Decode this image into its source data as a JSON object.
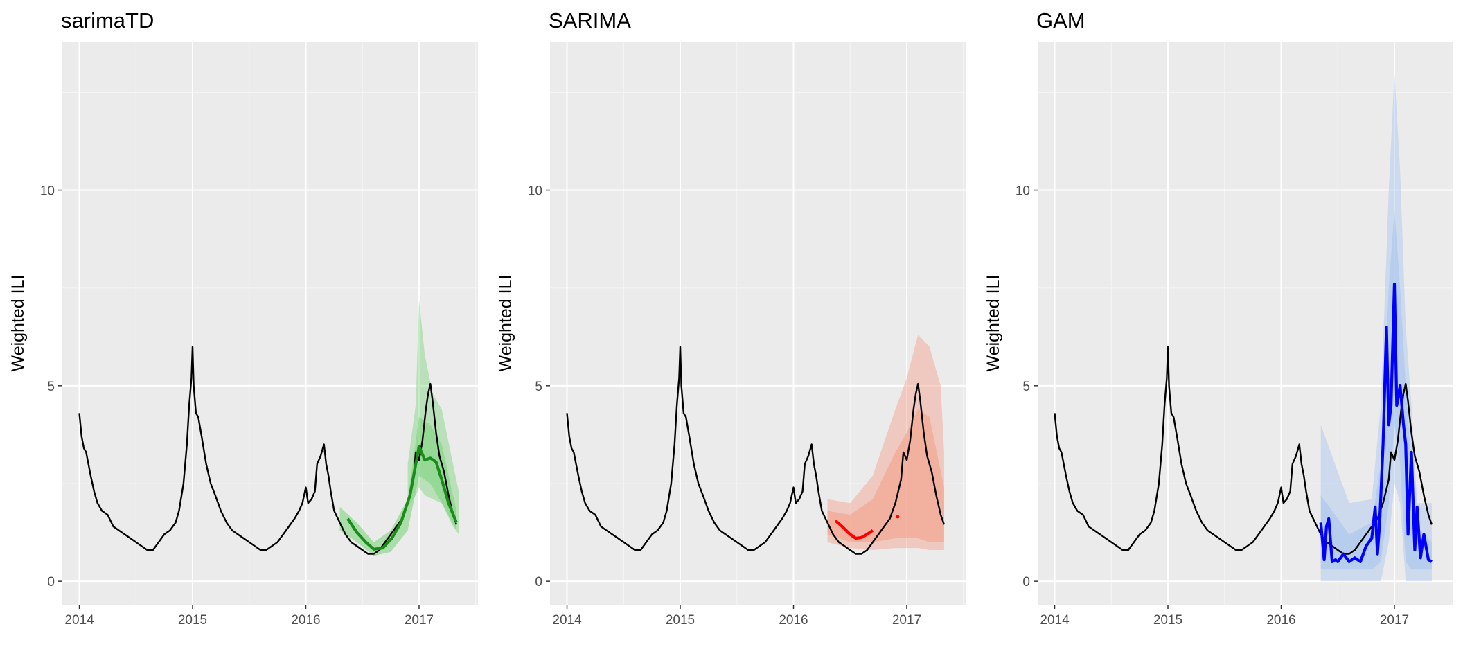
{
  "chart_data": [
    {
      "type": "line",
      "title": "sarimaTD",
      "xlabel": "",
      "ylabel": "Weighted ILI",
      "xlim": [
        2013.85,
        2017.52
      ],
      "ylim": [
        -0.6,
        13.8
      ],
      "x_ticks": [
        2014,
        2015,
        2016,
        2017
      ],
      "x_tick_labels": [
        "2014",
        "2015",
        "2016",
        "2017"
      ],
      "y_ticks": [
        0,
        5,
        10
      ],
      "y_tick_labels": [
        "0",
        "5",
        "10"
      ],
      "grid": true,
      "observed_color": "#000000",
      "forecast_color": "#1a8c1a",
      "band_color": "#7fd37f",
      "forecast": {
        "x": [
          2016.37,
          2016.45,
          2016.53,
          2016.6,
          2016.68,
          2016.76,
          2016.84,
          2016.92,
          2017.0,
          2017.05,
          2017.1,
          2017.15,
          2017.2,
          2017.26,
          2017.33
        ],
        "y": [
          1.6,
          1.25,
          1.0,
          0.82,
          0.85,
          1.1,
          1.5,
          2.2,
          3.45,
          3.1,
          3.15,
          3.05,
          2.6,
          2.0,
          1.5
        ]
      },
      "bands": [
        {
          "x": [
            2016.9,
            2016.97,
            2017.0,
            2017.05,
            2017.12,
            2017.2,
            2017.3,
            2017.35
          ],
          "lower": [
            1.9,
            2.2,
            2.4,
            2.2,
            2.1,
            2.0,
            1.4,
            1.2
          ],
          "upper": [
            3.0,
            4.5,
            7.2,
            5.8,
            4.8,
            4.4,
            3.0,
            2.3
          ]
        },
        {
          "x": [
            2016.3,
            2016.45,
            2016.6,
            2016.75,
            2016.9,
            2017.0,
            2017.1,
            2017.2,
            2017.33
          ],
          "lower": [
            1.3,
            1.0,
            0.65,
            0.75,
            1.3,
            2.7,
            2.5,
            2.0,
            1.3
          ],
          "upper": [
            1.9,
            1.5,
            1.0,
            1.3,
            2.1,
            4.2,
            4.0,
            3.5,
            1.8
          ]
        }
      ]
    },
    {
      "type": "line",
      "title": "SARIMA",
      "xlabel": "",
      "ylabel": "Weighted ILI",
      "xlim": [
        2013.85,
        2017.52
      ],
      "ylim": [
        -0.6,
        13.8
      ],
      "x_ticks": [
        2014,
        2015,
        2016,
        2017
      ],
      "x_tick_labels": [
        "2014",
        "2015",
        "2016",
        "2017"
      ],
      "y_ticks": [
        0,
        5,
        10
      ],
      "y_tick_labels": [
        "0",
        "5",
        "10"
      ],
      "grid": true,
      "observed_color": "#000000",
      "forecast_color": "#ff0000",
      "band_color": "#f4a08a",
      "forecast": {
        "x": [
          2016.37,
          2016.43,
          2016.5,
          2016.55,
          2016.6,
          2016.65,
          2016.7
        ],
        "y": [
          1.55,
          1.4,
          1.2,
          1.1,
          1.12,
          1.2,
          1.3
        ]
      },
      "forecast_point": {
        "x": 2016.92,
        "y": 1.65
      },
      "bands": [
        {
          "x": [
            2016.3,
            2016.5,
            2016.7,
            2016.9,
            2017.0,
            2017.1,
            2017.2,
            2017.3,
            2017.33
          ],
          "lower": [
            1.0,
            0.85,
            0.8,
            0.85,
            0.85,
            0.85,
            0.8,
            0.8,
            0.8
          ],
          "upper": [
            2.1,
            2.0,
            2.7,
            4.4,
            5.2,
            6.3,
            6.0,
            5.0,
            3.3
          ]
        },
        {
          "x": [
            2016.3,
            2016.5,
            2016.7,
            2016.9,
            2017.0,
            2017.1,
            2017.2,
            2017.33
          ],
          "lower": [
            1.2,
            1.0,
            1.0,
            1.1,
            1.1,
            1.1,
            1.0,
            1.0
          ],
          "upper": [
            1.8,
            1.7,
            2.1,
            3.3,
            3.8,
            4.4,
            4.2,
            2.4
          ]
        }
      ]
    },
    {
      "type": "line",
      "title": "GAM",
      "xlabel": "",
      "ylabel": "Weighted ILI",
      "xlim": [
        2013.85,
        2017.52
      ],
      "ylim": [
        -0.6,
        13.8
      ],
      "x_ticks": [
        2014,
        2015,
        2016,
        2017
      ],
      "x_tick_labels": [
        "2014",
        "2015",
        "2016",
        "2017"
      ],
      "y_ticks": [
        0,
        5,
        10
      ],
      "y_tick_labels": [
        "0",
        "5",
        "10"
      ],
      "grid": true,
      "observed_color": "#000000",
      "forecast_color": "#0000ff",
      "band_color": "#a8c4ee",
      "forecast": {
        "x": [
          2016.35,
          2016.38,
          2016.4,
          2016.42,
          2016.45,
          2016.48,
          2016.5,
          2016.55,
          2016.6,
          2016.65,
          2016.7,
          2016.75,
          2016.8,
          2016.83,
          2016.85,
          2016.87,
          2016.9,
          2016.93,
          2016.95,
          2016.97,
          2017.0,
          2017.02,
          2017.05,
          2017.08,
          2017.1,
          2017.12,
          2017.15,
          2017.18,
          2017.2,
          2017.23,
          2017.26,
          2017.3,
          2017.33
        ],
        "y": [
          1.5,
          0.55,
          1.4,
          1.6,
          0.5,
          0.55,
          0.5,
          0.7,
          0.5,
          0.6,
          0.5,
          0.9,
          1.1,
          1.9,
          0.7,
          1.5,
          3.5,
          6.5,
          4.0,
          4.5,
          7.6,
          4.5,
          5.0,
          4.0,
          3.5,
          1.2,
          3.3,
          0.8,
          1.9,
          0.6,
          1.2,
          0.55,
          0.5
        ]
      },
      "bands": [
        {
          "x": [
            2016.35,
            2016.6,
            2016.8,
            2016.88,
            2016.95,
            2017.0,
            2017.05,
            2017.1,
            2017.15,
            2017.2,
            2017.33
          ],
          "lower": [
            0.0,
            0.0,
            0.0,
            0.0,
            1.0,
            2.5,
            2.0,
            0.0,
            0.0,
            0.0,
            0.0
          ],
          "upper": [
            4.0,
            2.0,
            2.1,
            4.5,
            10.0,
            13.0,
            10.5,
            6.5,
            4.5,
            2.0,
            2.0
          ]
        },
        {
          "x": [
            2016.35,
            2016.6,
            2016.8,
            2016.88,
            2016.95,
            2017.0,
            2017.05,
            2017.1,
            2017.15,
            2017.2,
            2017.33
          ],
          "lower": [
            0.3,
            0.3,
            0.3,
            0.5,
            2.0,
            4.0,
            3.0,
            0.5,
            0.3,
            0.3,
            0.3
          ],
          "upper": [
            2.2,
            1.2,
            1.5,
            3.0,
            7.5,
            9.5,
            7.5,
            5.0,
            3.0,
            1.4,
            1.0
          ]
        }
      ]
    }
  ],
  "observed": {
    "x": [
      2014.0,
      2014.02,
      2014.04,
      2014.06,
      2014.08,
      2014.1,
      2014.13,
      2014.16,
      2014.2,
      2014.25,
      2014.3,
      2014.35,
      2014.4,
      2014.45,
      2014.5,
      2014.55,
      2014.6,
      2014.65,
      2014.7,
      2014.75,
      2014.8,
      2014.85,
      2014.88,
      2014.92,
      2014.95,
      2014.97,
      2014.99,
      2015.0,
      2015.01,
      2015.03,
      2015.05,
      2015.08,
      2015.12,
      2015.16,
      2015.2,
      2015.25,
      2015.3,
      2015.35,
      2015.4,
      2015.45,
      2015.5,
      2015.55,
      2015.6,
      2015.65,
      2015.7,
      2015.75,
      2015.8,
      2015.85,
      2015.9,
      2015.94,
      2015.97,
      2016.0,
      2016.02,
      2016.05,
      2016.08,
      2016.1,
      2016.13,
      2016.16,
      2016.18,
      2016.2,
      2016.22,
      2016.25,
      2016.3,
      2016.35,
      2016.4,
      2016.45,
      2016.5,
      2016.55,
      2016.6,
      2016.65,
      2016.7,
      2016.75,
      2016.8,
      2016.85,
      2016.9,
      2016.95,
      2016.97,
      2017.0,
      2017.03,
      2017.06,
      2017.08,
      2017.1,
      2017.12,
      2017.15,
      2017.18,
      2017.22,
      2017.26,
      2017.3,
      2017.33
    ],
    "y": [
      4.3,
      3.7,
      3.4,
      3.3,
      3.0,
      2.7,
      2.3,
      2.0,
      1.8,
      1.7,
      1.4,
      1.3,
      1.2,
      1.1,
      1.0,
      0.9,
      0.8,
      0.8,
      1.0,
      1.2,
      1.3,
      1.5,
      1.8,
      2.5,
      3.5,
      4.5,
      5.2,
      6.0,
      5.0,
      4.3,
      4.2,
      3.7,
      3.0,
      2.5,
      2.2,
      1.8,
      1.5,
      1.3,
      1.2,
      1.1,
      1.0,
      0.9,
      0.8,
      0.8,
      0.9,
      1.0,
      1.2,
      1.4,
      1.6,
      1.8,
      2.0,
      2.4,
      2.0,
      2.1,
      2.3,
      3.0,
      3.2,
      3.5,
      3.0,
      2.7,
      2.3,
      1.8,
      1.5,
      1.2,
      1.0,
      0.9,
      0.8,
      0.7,
      0.7,
      0.8,
      1.0,
      1.2,
      1.4,
      1.6,
      2.0,
      2.6,
      3.3,
      3.1,
      3.6,
      4.4,
      4.8,
      5.05,
      4.6,
      3.8,
      3.2,
      2.8,
      2.2,
      1.7,
      1.45
    ]
  }
}
